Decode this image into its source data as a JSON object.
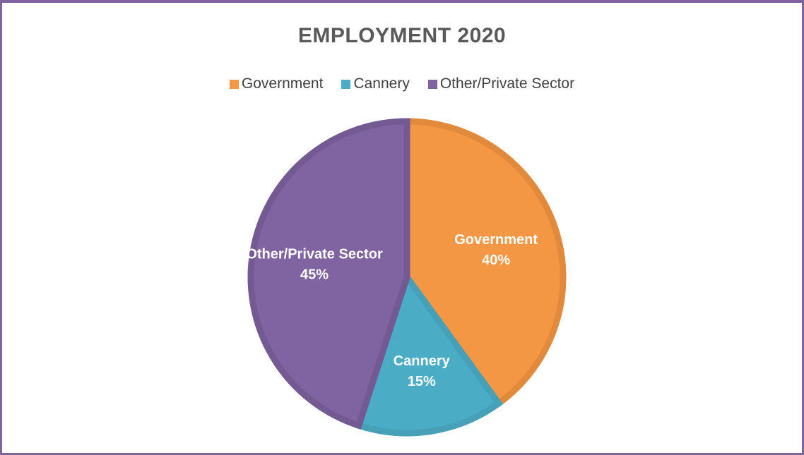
{
  "chart_data": {
    "type": "pie",
    "title": "EMPLOYMENT 2020",
    "legend_position": "top",
    "categories": [
      "Government",
      "Cannery",
      "Other/Private Sector"
    ],
    "values": [
      40,
      15,
      45
    ],
    "value_labels": [
      "40%",
      "15%",
      "45%"
    ],
    "colors": [
      "#f39744",
      "#4bacc6",
      "#8064a2"
    ],
    "border_colors": [
      "#e28a3c",
      "#45a0b8",
      "#735a93"
    ],
    "legend": [
      "Government",
      "Cannery",
      "Other/Private Sector"
    ]
  }
}
